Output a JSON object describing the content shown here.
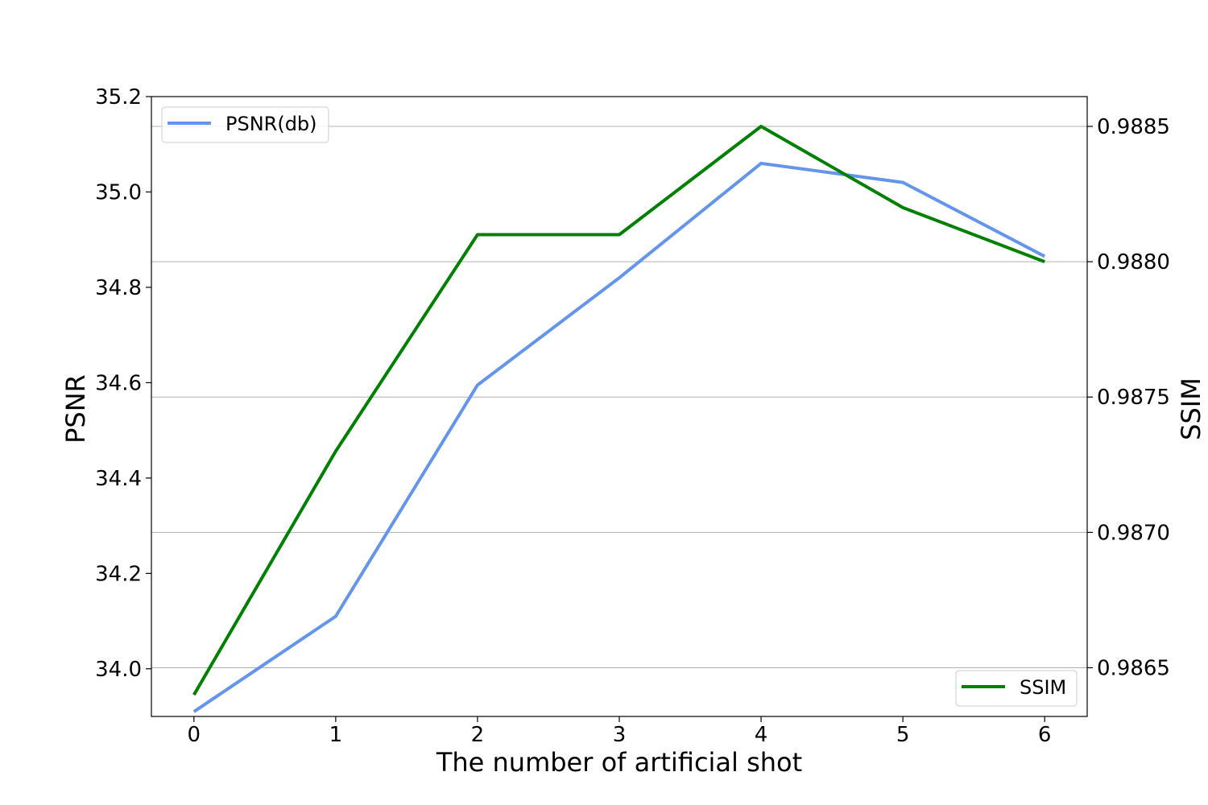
{
  "chart_data": {
    "type": "line",
    "x": [
      0,
      1,
      2,
      3,
      4,
      5,
      6
    ],
    "xlabel": "The number of artificial shot",
    "xticks": [
      "0",
      "1",
      "2",
      "3",
      "4",
      "5",
      "6"
    ],
    "xlim": [
      -0.3,
      6.3
    ],
    "grid": "horizontal lines at right-axis ticks",
    "series": [
      {
        "name": "PSNR(db)",
        "axis": "left",
        "color": "#6495ED",
        "values": [
          33.91,
          34.11,
          34.595,
          34.82,
          35.06,
          35.02,
          34.865
        ]
      },
      {
        "name": "SSIM",
        "axis": "right",
        "color": "#008000",
        "values": [
          0.9864,
          0.9873,
          0.9881,
          0.9881,
          0.9885,
          0.9882,
          0.988
        ]
      }
    ],
    "y_left": {
      "label": "PSNR",
      "ylim": [
        33.9,
        35.2
      ],
      "ticks": [
        "34.0",
        "34.2",
        "34.4",
        "34.6",
        "34.8",
        "35.0",
        "35.2"
      ]
    },
    "y_right": {
      "label": "SSIM",
      "ylim": [
        0.98632,
        0.98861
      ],
      "ticks": [
        "0.9865",
        "0.9870",
        "0.9875",
        "0.9880",
        "0.9885"
      ]
    },
    "legends": [
      {
        "series": "PSNR(db)",
        "placement": "upper left"
      },
      {
        "series": "SSIM",
        "placement": "lower right"
      }
    ]
  }
}
